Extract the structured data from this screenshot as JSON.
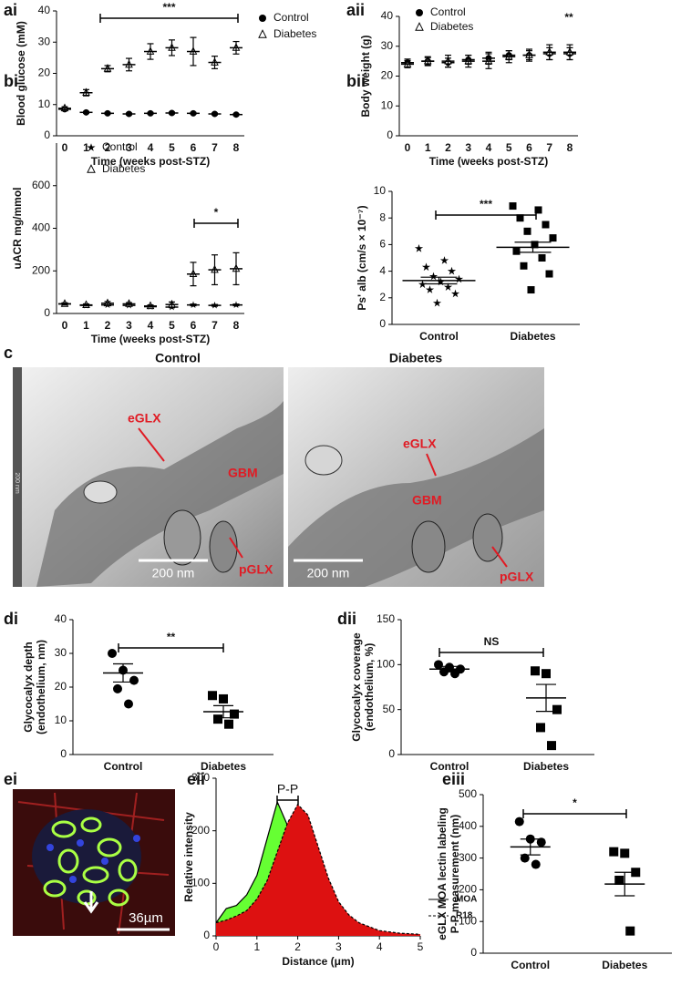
{
  "chart_data": [
    {
      "panel": "ai",
      "type": "dot-plot",
      "ylabel": [
        "Blood glucose (mM)"
      ],
      "xlabel": "Time (weeks post-STZ)",
      "categories": [
        "0",
        "1",
        "2",
        "3",
        "4",
        "5",
        "6",
        "7",
        "8"
      ],
      "ylim": [
        0,
        40
      ],
      "yticks": [
        0,
        10,
        20,
        30,
        40
      ],
      "legend": "right",
      "series": [
        {
          "name": "Control",
          "marker": "circle",
          "color": "#000000",
          "values": [
            8.5,
            7.5,
            7.2,
            7.0,
            7.2,
            7.3,
            7.2,
            7.0,
            6.8
          ],
          "errors": [
            0.4,
            0.3,
            0.3,
            0.3,
            0.3,
            0.3,
            0.3,
            0.3,
            0.3
          ]
        },
        {
          "name": "Diabetes",
          "marker": "triangle",
          "color": "#000000",
          "values": [
            8.8,
            13.8,
            21.5,
            22.8,
            27.0,
            28.2,
            27.0,
            23.5,
            28.2
          ],
          "errors": [
            0.5,
            1.0,
            1.0,
            2.0,
            2.5,
            2.5,
            4.5,
            2.0,
            2.0
          ]
        }
      ],
      "annotations": [
        {
          "text": "***"
        }
      ]
    },
    {
      "panel": "aii",
      "type": "dot-plot",
      "ylabel": [
        "Body weight (g)"
      ],
      "xlabel": "Time (weeks post-STZ)",
      "categories": [
        "0",
        "1",
        "2",
        "3",
        "4",
        "5",
        "6",
        "7",
        "8"
      ],
      "ylim": [
        0,
        40
      ],
      "yticks": [
        0,
        10,
        20,
        30,
        40
      ],
      "legend": "top-left",
      "series": [
        {
          "name": "Control",
          "marker": "circle",
          "color": "#000000",
          "values": [
            24.5,
            25,
            24.5,
            25.5,
            26,
            27,
            27,
            27.5,
            27.5
          ],
          "errors": [
            1.2,
            1.2,
            1.5,
            1.5,
            2,
            1.5,
            1.5,
            2,
            2
          ]
        },
        {
          "name": "Diabetes",
          "marker": "triangle",
          "color": "#000000",
          "values": [
            24,
            25,
            25,
            25,
            25,
            26.5,
            27,
            28,
            28
          ],
          "errors": [
            1.2,
            1.5,
            2,
            2,
            2.5,
            2,
            2,
            2.5,
            2.5
          ]
        }
      ],
      "annotations": [
        {
          "text": "**"
        }
      ]
    },
    {
      "panel": "bi",
      "type": "dot-plot",
      "ylabel": [
        "uACR mg/mmol"
      ],
      "xlabel": "Time (weeks post-STZ)",
      "categories": [
        "0",
        "1",
        "2",
        "3",
        "4",
        "5",
        "6",
        "7",
        "8"
      ],
      "ylim": [
        0,
        800
      ],
      "yticks": [
        0,
        200,
        400,
        600
      ],
      "legend": "top-left",
      "series": [
        {
          "name": "Control",
          "marker": "star",
          "color": "#000000",
          "values": [
            45,
            38,
            40,
            38,
            32,
            30,
            40,
            38,
            40
          ],
          "errors": [
            3,
            3,
            3,
            3,
            3,
            3,
            4,
            4,
            4
          ]
        },
        {
          "name": "Diabetes",
          "marker": "triangle",
          "color": "#000000",
          "values": [
            45,
            40,
            48,
            45,
            35,
            42,
            185,
            205,
            210
          ],
          "errors": [
            5,
            5,
            8,
            6,
            5,
            12,
            55,
            70,
            75
          ]
        }
      ],
      "annotations": [
        {
          "text": "*"
        }
      ]
    },
    {
      "panel": "bii",
      "type": "dot-plot",
      "ylabel": [
        "Ps' alb (cm/s × 10⁻⁷)"
      ],
      "categories": [
        "Control",
        "Diabetes"
      ],
      "ylim": [
        0,
        10
      ],
      "yticks": [
        0,
        2,
        4,
        6,
        8,
        10
      ],
      "series": [
        {
          "markers": [
            "star",
            "square"
          ],
          "color": "#000000",
          "values": [
            3.3,
            5.8
          ],
          "errors": [
            0.25,
            0.38
          ],
          "points": [
            [
              5.7,
              4.8,
              4.3,
              4.0,
              3.6,
              3.4,
              3.2,
              3.0,
              2.8,
              2.6,
              2.3,
              1.6
            ],
            [
              8.9,
              8.6,
              8.0,
              7.5,
              7.0,
              6.5,
              6.0,
              5.5,
              5.0,
              4.4,
              3.8,
              2.6
            ]
          ]
        }
      ],
      "annotations": [
        {
          "text": "***"
        }
      ]
    },
    {
      "panel": "di",
      "type": "dot-plot",
      "ylabel": [
        "Glycocalyx depth",
        "(endothelium, nm)"
      ],
      "categories": [
        "Control",
        "Diabetes"
      ],
      "ylim": [
        0,
        40
      ],
      "yticks": [
        0,
        10,
        20,
        30,
        40
      ],
      "series": [
        {
          "markers": [
            "circle",
            "square"
          ],
          "color": "#000000",
          "values": [
            24.2,
            12.7
          ],
          "errors": [
            2.7,
            1.8
          ],
          "points": [
            [
              30,
              25,
              22,
              19.5,
              15
            ],
            [
              17.5,
              16.5,
              12,
              10.5,
              9
            ]
          ]
        }
      ],
      "annotations": [
        {
          "text": "**"
        }
      ]
    },
    {
      "panel": "dii",
      "type": "dot-plot",
      "ylabel": [
        "Glycocalyx coverage",
        "(endothelium, %)"
      ],
      "categories": [
        "Control",
        "Diabetes"
      ],
      "ylim": [
        0,
        150
      ],
      "yticks": [
        0,
        50,
        100,
        150
      ],
      "series": [
        {
          "markers": [
            "circle",
            "square"
          ],
          "color": "#000000",
          "values": [
            95,
            63
          ],
          "errors": [
            3,
            15
          ],
          "points": [
            [
              100,
              97,
              95,
              92,
              90
            ],
            [
              93,
              90,
              50,
              30,
              10
            ]
          ]
        }
      ],
      "annotations": [
        {
          "text": "NS"
        }
      ]
    },
    {
      "panel": "eii",
      "type": "line",
      "ylabel": [
        "Relative intensity"
      ],
      "xlabel": "Distance (μm)",
      "xlim": [
        0,
        5
      ],
      "xticks": [
        0,
        1,
        2,
        3,
        4,
        5
      ],
      "ylim": [
        0,
        300
      ],
      "yticks": [
        0,
        100,
        200,
        300
      ],
      "legend": "right",
      "x": [
        0,
        0.25,
        0.5,
        0.75,
        1,
        1.25,
        1.5,
        1.75,
        2,
        2.25,
        2.5,
        2.75,
        3,
        3.25,
        3.5,
        4,
        4.5,
        5
      ],
      "series": [
        {
          "name": "MOA",
          "color": "#66ff33",
          "dash": "solid",
          "values": [
            25,
            52,
            58,
            78,
            115,
            185,
            255,
            210,
            170,
            120,
            75,
            45,
            25,
            15,
            10,
            5,
            3,
            2
          ]
        },
        {
          "name": "R18",
          "color": "#dd1111",
          "dash": "dashed",
          "values": [
            25,
            30,
            38,
            48,
            70,
            105,
            160,
            215,
            250,
            230,
            170,
            110,
            65,
            40,
            25,
            10,
            5,
            3
          ]
        }
      ],
      "annotations": [
        {
          "text": "P-P"
        }
      ]
    },
    {
      "panel": "eiii",
      "type": "dot-plot",
      "ylabel": [
        "eGLX MOA lectin labeling",
        "P-P measurement (nm)"
      ],
      "categories": [
        "Control",
        "Diabetes"
      ],
      "ylim": [
        0,
        500
      ],
      "yticks": [
        0,
        100,
        200,
        300,
        400,
        500
      ],
      "series": [
        {
          "markers": [
            "circle",
            "square"
          ],
          "color": "#000000",
          "values": [
            335,
            218
          ],
          "errors": [
            25,
            37
          ],
          "points": [
            [
              415,
              360,
              350,
              300,
              280
            ],
            [
              320,
              315,
              255,
              230,
              70
            ]
          ]
        }
      ],
      "annotations": [
        {
          "text": "*"
        }
      ]
    }
  ],
  "micrographs": {
    "panel": "c",
    "ruler": "200 nm",
    "images": [
      {
        "title": "Control",
        "labels": [
          "eGLX",
          "GBM",
          "pGLX"
        ],
        "scale": "200 nm"
      },
      {
        "title": "Diabetes",
        "labels": [
          "eGLX",
          "GBM",
          "pGLX"
        ],
        "scale": "200 nm"
      }
    ]
  },
  "fluorescence": {
    "panel": "ei",
    "scale": "36µm"
  }
}
